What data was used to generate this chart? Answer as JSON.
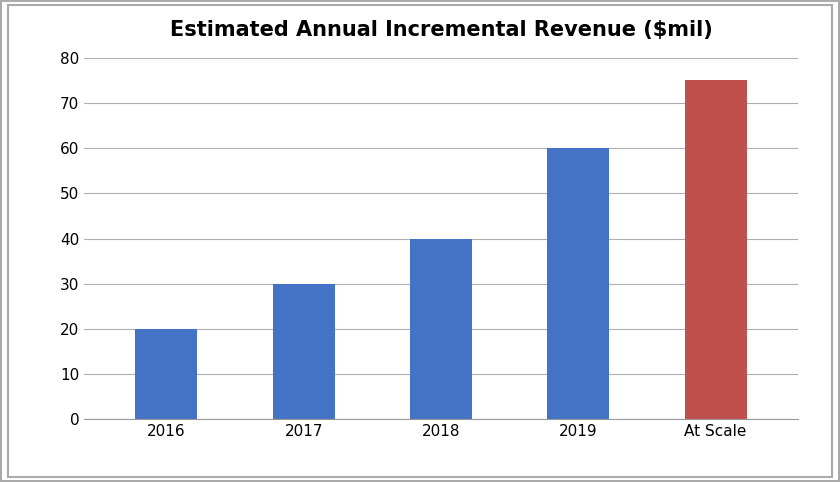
{
  "title": "Estimated Annual Incremental Revenue ($mil)",
  "categories": [
    "2016",
    "2017",
    "2018",
    "2019",
    "At Scale"
  ],
  "values": [
    20,
    30,
    40,
    60,
    75
  ],
  "bar_colors": [
    "#4472C4",
    "#4472C4",
    "#4472C4",
    "#4472C4",
    "#C0504D"
  ],
  "ylim": [
    0,
    80
  ],
  "yticks": [
    0,
    10,
    20,
    30,
    40,
    50,
    60,
    70,
    80
  ],
  "background_color": "#FFFFFF",
  "title_fontsize": 15,
  "title_fontweight": "bold",
  "tick_fontsize": 11,
  "grid_color": "#B0B0B0",
  "bar_width": 0.45,
  "figure_facecolor": "#FFFFFF",
  "axes_facecolor": "#FFFFFF",
  "border_color": "#999999",
  "frame_color": "#AAAAAA"
}
